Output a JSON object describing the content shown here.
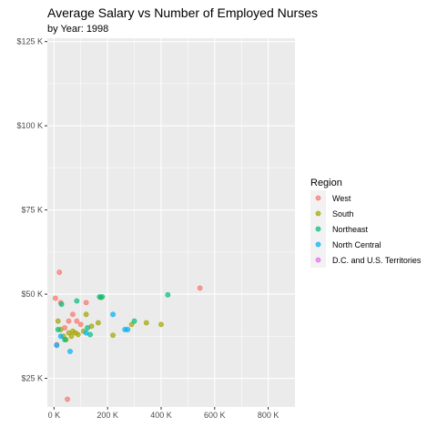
{
  "chart_data": {
    "type": "scatter",
    "title": "Average Salary vs Number of Employed Nurses",
    "subtitle": "by Year: 1998",
    "xlabel": "",
    "ylabel": "",
    "xlim": [
      -25000,
      900000
    ],
    "ylim": [
      16500,
      126000
    ],
    "x_ticks": [
      0,
      200000,
      400000,
      600000,
      800000
    ],
    "x_tick_labels": [
      "0 K",
      "200 K",
      "400 K",
      "600 K",
      "800 K"
    ],
    "y_ticks": [
      25000,
      50000,
      75000,
      100000,
      125000
    ],
    "y_tick_labels": [
      "$25 K",
      "$50 K",
      "$75 K",
      "$100 K",
      "$125 K"
    ],
    "grid": true,
    "legend_title": "Region",
    "legend_position": "right",
    "series": [
      {
        "name": "West",
        "color": "#F8766D",
        "points": [
          [
            5000,
            48800
          ],
          [
            10000,
            35000
          ],
          [
            20000,
            56500
          ],
          [
            25000,
            47500
          ],
          [
            40000,
            40000
          ],
          [
            55000,
            42000
          ],
          [
            70000,
            44000
          ],
          [
            85000,
            42000
          ],
          [
            100000,
            41000
          ],
          [
            120000,
            47500
          ],
          [
            545000,
            51800
          ],
          [
            50000,
            18800
          ]
        ]
      },
      {
        "name": "South",
        "color": "#A3A500",
        "points": [
          [
            15000,
            42000
          ],
          [
            25000,
            39500
          ],
          [
            35000,
            37500
          ],
          [
            45000,
            36500
          ],
          [
            55000,
            38500
          ],
          [
            65000,
            37500
          ],
          [
            70000,
            39000
          ],
          [
            80000,
            38500
          ],
          [
            90000,
            38000
          ],
          [
            110000,
            39000
          ],
          [
            120000,
            44000
          ],
          [
            140000,
            40500
          ],
          [
            165000,
            41500
          ],
          [
            220000,
            37800
          ],
          [
            290000,
            41000
          ],
          [
            345000,
            41500
          ],
          [
            400000,
            41000
          ],
          [
            175000,
            49000
          ]
        ]
      },
      {
        "name": "Northeast",
        "color": "#00BF7D",
        "points": [
          [
            15000,
            39500
          ],
          [
            28000,
            47000
          ],
          [
            40000,
            36500
          ],
          [
            85000,
            48000
          ],
          [
            125000,
            40000
          ],
          [
            135000,
            38000
          ],
          [
            170000,
            49200
          ],
          [
            180000,
            49200
          ],
          [
            300000,
            42000
          ],
          [
            425000,
            49800
          ]
        ]
      },
      {
        "name": "North Central",
        "color": "#00B0F6",
        "points": [
          [
            10000,
            34800
          ],
          [
            25000,
            37500
          ],
          [
            60000,
            33000
          ],
          [
            120000,
            38500
          ],
          [
            220000,
            44000
          ],
          [
            265000,
            39500
          ],
          [
            275000,
            39500
          ]
        ]
      },
      {
        "name": "D.C. and U.S. Territories",
        "color": "#E76BF3",
        "points": []
      }
    ]
  }
}
